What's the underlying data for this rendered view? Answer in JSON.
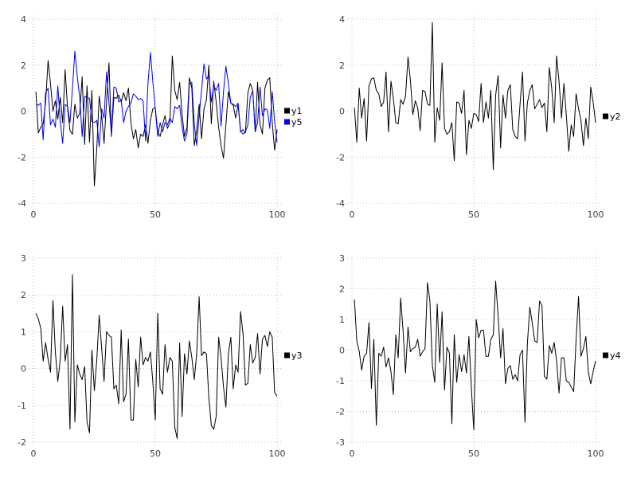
{
  "page": {
    "background": "#ffffff"
  },
  "style": {
    "grid_color": "#bcbccd",
    "tick_label_color": "#404040",
    "legend_text_color": "#000000",
    "black_series_color": "#000000",
    "blue_series_color": "#0000ee"
  },
  "chart_data": [
    {
      "type": "line",
      "position": "top-left",
      "title": "",
      "xlabel": "",
      "ylabel": "",
      "x_start": 1,
      "xlim": [
        0,
        100
      ],
      "ylim": [
        -4,
        4
      ],
      "xticks": [
        0,
        50,
        100
      ],
      "yticks": [
        -4,
        -2,
        0,
        2,
        4
      ],
      "grid": "dotted",
      "legend_position": "right-center",
      "series": [
        {
          "name": "y1",
          "color": "#000000",
          "values": [
            0.85,
            -0.95,
            -0.7,
            -0.55,
            0.4,
            2.2,
            1.2,
            0.0,
            0.45,
            -0.35,
            0.6,
            -0.5,
            1.8,
            0.15,
            -0.85,
            -1.0,
            0.3,
            -0.3,
            -0.1,
            1.5,
            -1.45,
            1.1,
            -1.35,
            0.9,
            -3.25,
            -1.6,
            0.65,
            -0.2,
            -1.4,
            0.4,
            2.1,
            -1.1,
            0.6,
            0.55,
            0.7,
            0.4,
            0.8,
            0.45,
            1.0,
            -0.5,
            -1.2,
            -0.8,
            -1.6,
            -1.0,
            -1.1,
            -0.6,
            -1.4,
            -0.4,
            0.1,
            0.15,
            -0.9,
            -1.1,
            -0.6,
            -0.2,
            -0.75,
            -0.5,
            2.4,
            0.9,
            0.5,
            1.25,
            -0.15,
            -1.1,
            -0.7,
            1.45,
            1.0,
            -1.5,
            -0.85,
            0.3,
            -1.2,
            0.1,
            0.5,
            2.0,
            -0.55,
            1.3,
            0.4,
            -0.7,
            -1.5,
            -2.05,
            -0.6,
            0.85,
            0.35,
            0.25,
            -0.3,
            0.3,
            -0.9,
            -0.8,
            -0.95,
            0.8,
            1.2,
            0.9,
            -0.9,
            1.25,
            -0.6,
            -1.0,
            1.0,
            1.35,
            1.45,
            -0.5,
            -1.7,
            -0.8
          ]
        },
        {
          "name": "y5",
          "color": "#0000ee",
          "values": [
            0.3,
            0.25,
            0.35,
            -1.25,
            0.8,
            1.0,
            -0.6,
            -0.35,
            -0.7,
            1.1,
            -0.45,
            -1.4,
            0.3,
            0.2,
            -0.5,
            1.0,
            2.6,
            1.5,
            0.6,
            -1.1,
            0.65,
            0.6,
            0.55,
            -0.45,
            -0.5,
            -0.4,
            -1.55,
            0.1,
            -0.3,
            1.7,
            0.35,
            -1.0,
            1.05,
            1.0,
            0.4,
            0.5,
            -0.5,
            0.0,
            0.2,
            0.35,
            0.75,
            0.65,
            0.5,
            0.55,
            0.45,
            -1.3,
            1.2,
            2.55,
            1.3,
            0.1,
            -1.1,
            -0.5,
            -0.9,
            -0.5,
            -0.6,
            -0.3,
            -0.5,
            0.2,
            0.1,
            0.25,
            -0.7,
            -1.3,
            -1.0,
            1.2,
            1.25,
            -0.55,
            -1.5,
            -0.2,
            0.9,
            2.05,
            1.4,
            1.55,
            0.4,
            1.1,
            0.9,
            1.2,
            -0.65,
            0.85,
            1.95,
            1.2,
            0.35,
            0.3,
            0.2,
            0.35,
            -0.85,
            -1.0,
            -0.9,
            -0.6,
            0.6,
            0.9,
            -0.9,
            -0.5,
            1.05,
            -0.2,
            0.1,
            0.05,
            -0.75,
            0.85,
            -0.45,
            -1.35
          ]
        }
      ]
    },
    {
      "type": "line",
      "position": "top-right",
      "title": "",
      "xlabel": "",
      "ylabel": "",
      "x_start": 1,
      "xlim": [
        0,
        100
      ],
      "ylim": [
        -4,
        4
      ],
      "xticks": [
        0,
        50,
        100
      ],
      "yticks": [
        -4,
        -2,
        0,
        2,
        4
      ],
      "grid": "dotted",
      "legend_position": "right-center",
      "series": [
        {
          "name": "y2",
          "color": "#000000",
          "values": [
            0.15,
            -1.35,
            1.0,
            -0.3,
            0.55,
            -1.3,
            1.1,
            1.4,
            1.45,
            0.9,
            0.75,
            0.2,
            0.4,
            1.7,
            -0.9,
            1.3,
            0.55,
            -0.5,
            -0.55,
            0.5,
            0.3,
            0.65,
            2.35,
            1.35,
            -0.15,
            0.45,
            0.15,
            -0.85,
            0.9,
            0.85,
            0.3,
            0.25,
            3.85,
            -1.35,
            0.15,
            -0.4,
            2.1,
            -0.75,
            -1.0,
            -0.9,
            -0.5,
            -2.15,
            0.4,
            0.35,
            -0.1,
            0.9,
            -1.9,
            -0.4,
            -0.75,
            -0.1,
            -0.15,
            -0.45,
            1.2,
            -0.5,
            0.4,
            -0.3,
            0.9,
            -2.55,
            0.7,
            1.55,
            -1.6,
            0.7,
            -0.3,
            0.9,
            1.15,
            -0.8,
            -1.1,
            -1.2,
            0.3,
            1.7,
            -1.3,
            0.35,
            0.9,
            1.15,
            0.1,
            0.3,
            0.5,
            0.15,
            0.35,
            -0.9,
            1.9,
            1.0,
            -0.5,
            2.4,
            1.3,
            -0.3,
            1.2,
            -0.2,
            -1.75,
            -0.6,
            -1.1,
            0.75,
            0.1,
            -0.4,
            -1.5,
            -0.3,
            -1.2,
            1.05,
            0.4,
            -0.5
          ]
        }
      ]
    },
    {
      "type": "line",
      "position": "bottom-left",
      "title": "",
      "xlabel": "",
      "ylabel": "",
      "x_start": 1,
      "xlim": [
        0,
        100
      ],
      "ylim": [
        -2,
        3
      ],
      "xticks": [
        0,
        50,
        100
      ],
      "yticks": [
        -2,
        -1,
        0,
        1,
        2,
        3
      ],
      "grid": "dotted",
      "legend_position": "right-center",
      "series": [
        {
          "name": "y3",
          "color": "#000000",
          "values": [
            1.5,
            1.35,
            1.1,
            0.2,
            0.7,
            0.25,
            -0.1,
            1.85,
            0.45,
            -0.35,
            0.25,
            1.7,
            0.2,
            0.65,
            -1.65,
            2.55,
            -1.45,
            0.1,
            -0.15,
            -0.3,
            0.05,
            -1.45,
            -1.75,
            0.5,
            -0.6,
            0.25,
            1.45,
            0.55,
            -0.35,
            1.0,
            0.9,
            0.85,
            -0.55,
            -0.45,
            -0.95,
            1.05,
            -0.9,
            -0.7,
            0.8,
            -1.4,
            -1.4,
            0.25,
            -0.5,
            0.85,
            0.1,
            0.3,
            0.2,
            0.45,
            -0.35,
            -1.4,
            1.5,
            -0.55,
            -0.7,
            0.65,
            -0.1,
            0.3,
            0.2,
            -1.6,
            -1.9,
            0.7,
            -1.3,
            0.4,
            -0.15,
            0.75,
            0.3,
            -0.3,
            0.4,
            1.95,
            0.35,
            0.45,
            0.4,
            -0.8,
            -1.55,
            -1.65,
            -1.3,
            0.85,
            0.3,
            -0.5,
            -1.05,
            0.4,
            0.85,
            -0.55,
            0.1,
            -0.1,
            1.55,
            0.95,
            -0.45,
            -0.4,
            0.65,
            0.15,
            0.3,
            0.95,
            -0.15,
            0.8,
            0.9,
            0.6,
            1.0,
            0.85,
            -0.65,
            -0.75
          ]
        }
      ]
    },
    {
      "type": "line",
      "position": "bottom-right",
      "title": "",
      "xlabel": "",
      "ylabel": "",
      "x_start": 1,
      "xlim": [
        0,
        100
      ],
      "ylim": [
        -3,
        3
      ],
      "xticks": [
        0,
        50,
        100
      ],
      "yticks": [
        -3,
        -2,
        -1,
        0,
        1,
        2,
        3
      ],
      "grid": "dotted",
      "legend_position": "right-center",
      "series": [
        {
          "name": "y4",
          "color": "#000000",
          "values": [
            1.65,
            0.3,
            -0.05,
            -0.65,
            -0.2,
            -0.1,
            0.9,
            -1.25,
            0.35,
            -2.45,
            -0.1,
            -0.2,
            0.1,
            -0.55,
            -0.25,
            -0.7,
            -1.45,
            0.5,
            -0.25,
            1.7,
            0.6,
            -0.75,
            0.75,
            -0.05,
            0.05,
            0.1,
            0.35,
            -0.2,
            -0.05,
            0.05,
            2.2,
            1.6,
            -0.5,
            -1.05,
            1.5,
            -0.4,
            1.25,
            -1.3,
            0.1,
            -0.1,
            -2.4,
            0.5,
            -1.05,
            -0.15,
            -0.7,
            -0.15,
            -0.75,
            0.45,
            -1.2,
            -2.6,
            1.0,
            0.4,
            0.65,
            0.65,
            -0.2,
            -0.2,
            0.35,
            0.5,
            2.25,
            1.1,
            -0.25,
            0.7,
            -1.1,
            -0.6,
            -0.5,
            -0.95,
            -0.8,
            -1.0,
            -0.15,
            0.0,
            -2.35,
            0.2,
            1.4,
            0.9,
            0.3,
            0.25,
            1.6,
            1.45,
            -0.85,
            -0.95,
            0.15,
            -0.1,
            0.25,
            -0.35,
            -1.4,
            -0.25,
            -0.25,
            -1.0,
            -1.05,
            -1.2,
            -1.35,
            0.35,
            1.75,
            -0.2,
            0.05,
            0.45,
            -0.7,
            -1.1,
            -0.7,
            -0.35
          ]
        }
      ]
    }
  ]
}
